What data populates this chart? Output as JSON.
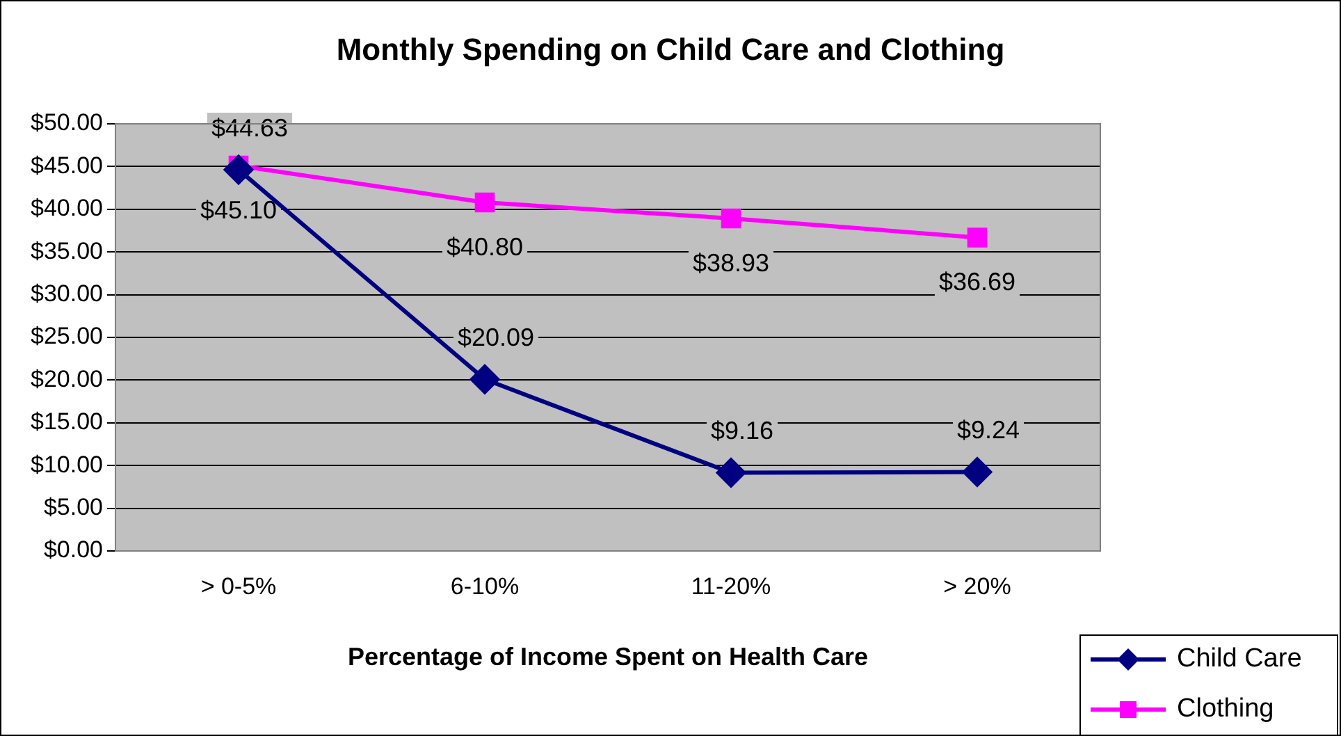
{
  "chart_data": {
    "type": "line",
    "title": "Monthly Spending on Child Care and Clothing",
    "xlabel": "Percentage of Income Spent on Health Care",
    "categories": [
      "> 0-5%",
      "6-10%",
      "11-20%",
      "> 20%"
    ],
    "series": [
      {
        "name": "Child Care",
        "color": "#000080",
        "marker": "diamond",
        "values": [
          44.63,
          20.09,
          9.16,
          9.24
        ],
        "value_labels": [
          "$44.63",
          "$20.09",
          "$9.16",
          "$9.24"
        ]
      },
      {
        "name": "Clothing",
        "color": "#ff00ff",
        "marker": "square",
        "values": [
          45.1,
          40.8,
          38.93,
          36.69
        ],
        "value_labels": [
          "$45.10",
          "$40.80",
          "$38.93",
          "$36.69"
        ]
      }
    ],
    "ylim": [
      0,
      50
    ],
    "yticks": [
      {
        "value": 0,
        "label": "$0.00"
      },
      {
        "value": 5,
        "label": "$5.00"
      },
      {
        "value": 10,
        "label": "$10.00"
      },
      {
        "value": 15,
        "label": "$15.00"
      },
      {
        "value": 20,
        "label": "$20.00"
      },
      {
        "value": 25,
        "label": "$25.00"
      },
      {
        "value": 30,
        "label": "$30.00"
      },
      {
        "value": 35,
        "label": "$35.00"
      },
      {
        "value": 40,
        "label": "$40.00"
      },
      {
        "value": 45,
        "label": "$45.00"
      },
      {
        "value": 50,
        "label": "$50.00"
      }
    ],
    "grid": "y",
    "legend": "bottom right"
  }
}
